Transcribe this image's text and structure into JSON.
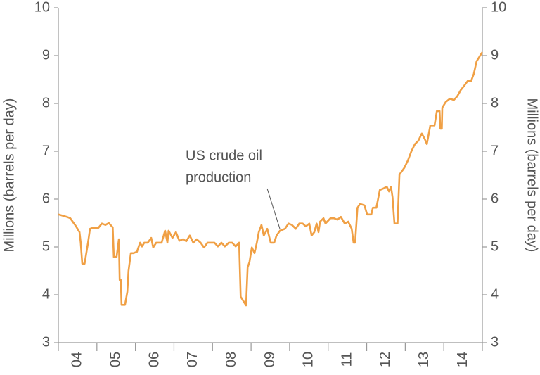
{
  "chart_data": {
    "type": "line",
    "y_label": "Millions (barrels per day)",
    "y2_label": "Millions (barrels per day)",
    "annotation": [
      "US crude oil",
      "production"
    ],
    "categories": [
      "04",
      "05",
      "06",
      "07",
      "08",
      "09",
      "10",
      "11",
      "12",
      "13",
      "14"
    ],
    "xlim": [
      2004,
      2015
    ],
    "ylim": [
      3,
      10
    ],
    "yticks": [
      3,
      4,
      5,
      6,
      7,
      8,
      9,
      10
    ],
    "y2lim": [
      3,
      10
    ],
    "y2ticks": [
      3,
      4,
      5,
      6,
      7,
      8,
      9,
      10
    ],
    "grid": false,
    "x": [
      2004.0,
      2004.22,
      2004.31,
      2004.46,
      2004.55,
      2004.58,
      2004.62,
      2004.68,
      2004.77,
      2004.82,
      2004.89,
      2005.04,
      2005.13,
      2005.22,
      2005.31,
      2005.41,
      2005.44,
      2005.51,
      2005.57,
      2005.59,
      2005.62,
      2005.64,
      2005.73,
      2005.79,
      2005.82,
      2005.88,
      2005.95,
      2006.04,
      2006.12,
      2006.17,
      2006.23,
      2006.32,
      2006.41,
      2006.46,
      2006.54,
      2006.68,
      2006.77,
      2006.83,
      2006.86,
      2006.96,
      2007.05,
      2007.14,
      2007.23,
      2007.32,
      2007.41,
      2007.5,
      2007.59,
      2007.69,
      2007.78,
      2007.87,
      2008.05,
      2008.14,
      2008.23,
      2008.32,
      2008.42,
      2008.51,
      2008.6,
      2008.69,
      2008.73,
      2008.87,
      2008.91,
      2008.96,
      2009.02,
      2009.09,
      2009.15,
      2009.2,
      2009.27,
      2009.33,
      2009.38,
      2009.42,
      2009.51,
      2009.6,
      2009.66,
      2009.75,
      2009.88,
      2009.97,
      2010.06,
      2010.16,
      2010.25,
      2010.34,
      2010.42,
      2010.51,
      2010.57,
      2010.64,
      2010.7,
      2010.75,
      2010.79,
      2010.88,
      2010.93,
      2011.06,
      2011.15,
      2011.24,
      2011.33,
      2011.43,
      2011.52,
      2011.61,
      2011.66,
      2011.7,
      2011.76,
      2011.83,
      2011.94,
      2012.01,
      2012.12,
      2012.16,
      2012.25,
      2012.34,
      2012.43,
      2012.52,
      2012.58,
      2012.63,
      2012.67,
      2012.72,
      2012.8,
      2012.85,
      2012.98,
      2013.07,
      2013.16,
      2013.25,
      2013.34,
      2013.43,
      2013.51,
      2013.56,
      2013.65,
      2013.76,
      2013.82,
      2013.89,
      2013.91,
      2013.95,
      2013.96,
      2014.05,
      2014.16,
      2014.26,
      2014.35,
      2014.44,
      2014.53,
      2014.62,
      2014.71,
      2014.78,
      2014.85,
      2014.95,
      2015.0
    ],
    "series": [
      {
        "name": "US crude oil production",
        "color": "#f0a045",
        "values": [
          5.68,
          5.63,
          5.6,
          5.43,
          5.31,
          5.09,
          4.65,
          4.65,
          5.09,
          5.38,
          5.4,
          5.4,
          5.49,
          5.46,
          5.5,
          5.41,
          4.79,
          4.79,
          5.16,
          4.31,
          4.31,
          3.79,
          3.79,
          4.06,
          4.5,
          4.87,
          4.87,
          4.9,
          5.09,
          5.01,
          5.09,
          5.09,
          5.19,
          4.99,
          5.09,
          5.09,
          5.34,
          5.09,
          5.34,
          5.19,
          5.31,
          5.13,
          5.16,
          5.12,
          5.24,
          5.09,
          5.16,
          5.09,
          4.99,
          5.09,
          5.09,
          5.01,
          5.09,
          5.01,
          5.09,
          5.09,
          5.01,
          5.09,
          3.96,
          3.78,
          4.57,
          4.69,
          4.99,
          4.87,
          5.09,
          5.31,
          5.46,
          5.24,
          5.31,
          5.38,
          5.09,
          5.09,
          5.24,
          5.34,
          5.38,
          5.49,
          5.46,
          5.38,
          5.49,
          5.49,
          5.43,
          5.49,
          5.24,
          5.31,
          5.49,
          5.31,
          5.53,
          5.6,
          5.49,
          5.6,
          5.6,
          5.57,
          5.63,
          5.49,
          5.53,
          5.38,
          5.09,
          5.09,
          5.82,
          5.9,
          5.87,
          5.68,
          5.68,
          5.82,
          5.82,
          6.19,
          6.22,
          6.26,
          6.16,
          6.26,
          6.04,
          5.49,
          5.49,
          6.51,
          6.66,
          6.81,
          7.0,
          7.15,
          7.22,
          7.37,
          7.25,
          7.15,
          7.54,
          7.54,
          7.84,
          7.84,
          7.47,
          7.47,
          7.91,
          8.03,
          8.1,
          8.07,
          8.15,
          8.28,
          8.37,
          8.47,
          8.47,
          8.62,
          8.88,
          9.01,
          9.07
        ]
      }
    ]
  }
}
